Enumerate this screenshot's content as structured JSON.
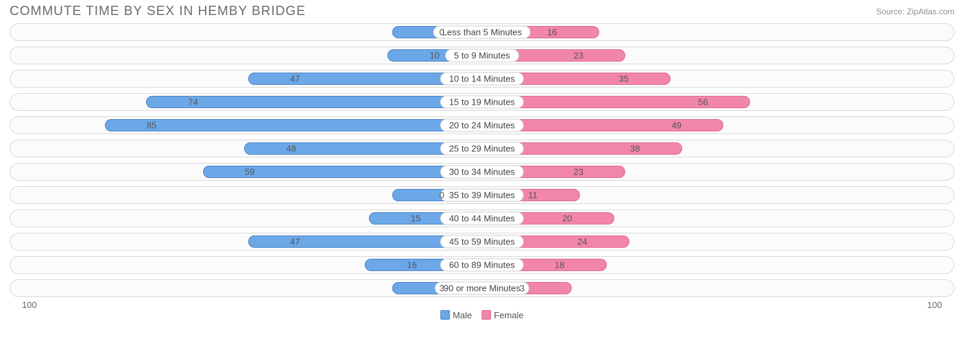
{
  "title": "COMMUTE TIME BY SEX IN HEMBY BRIDGE",
  "source": "Source: ZipAtlas.com",
  "chart": {
    "type": "bar-diverging",
    "axis_max": 100,
    "axis_label_left": "100",
    "axis_label_right": "100",
    "track_bg": "#fbfbfb",
    "track_border": "#d9d9d9",
    "male_color": "#6ca7e8",
    "male_border": "#4e86c6",
    "female_color": "#f285ab",
    "female_border": "#e06a94",
    "label_halfwidth_pct": 10,
    "rows": [
      {
        "label": "Less than 5 Minutes",
        "male": 0,
        "female": 16
      },
      {
        "label": "5 to 9 Minutes",
        "male": 10,
        "female": 23
      },
      {
        "label": "10 to 14 Minutes",
        "male": 47,
        "female": 35
      },
      {
        "label": "15 to 19 Minutes",
        "male": 74,
        "female": 56
      },
      {
        "label": "20 to 24 Minutes",
        "male": 85,
        "female": 49
      },
      {
        "label": "25 to 29 Minutes",
        "male": 48,
        "female": 38
      },
      {
        "label": "30 to 34 Minutes",
        "male": 59,
        "female": 23
      },
      {
        "label": "35 to 39 Minutes",
        "male": 0,
        "female": 11
      },
      {
        "label": "40 to 44 Minutes",
        "male": 15,
        "female": 20
      },
      {
        "label": "45 to 59 Minutes",
        "male": 47,
        "female": 24
      },
      {
        "label": "60 to 89 Minutes",
        "male": 16,
        "female": 18
      },
      {
        "label": "90 or more Minutes",
        "male": 3,
        "female": 3
      }
    ]
  },
  "legend": {
    "male": "Male",
    "female": "Female"
  }
}
